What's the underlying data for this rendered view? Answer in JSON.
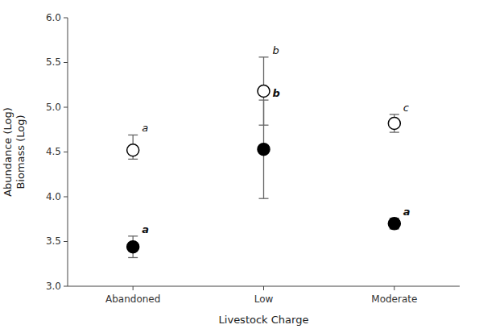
{
  "chart_data": {
    "type": "dot",
    "categories": [
      "Abandoned",
      "Low",
      "Moderate"
    ],
    "series": [
      {
        "color": "white",
        "marker": "circle",
        "values": [
          4.52,
          5.18,
          4.82
        ],
        "error_upper": [
          0.17,
          0.38,
          0.1
        ],
        "error_lower": [
          0.1,
          0.38,
          0.1
        ],
        "labels": [
          "a",
          "b",
          "c"
        ]
      },
      {
        "color": "black",
        "marker": "circle",
        "values": [
          3.44,
          4.53,
          3.7
        ],
        "error_upper": [
          0.12,
          0.55,
          0.06
        ],
        "error_lower": [
          0.12,
          0.55,
          0.06
        ],
        "labels": [
          "a",
          "b",
          "a"
        ]
      }
    ],
    "ylim": [
      3.0,
      6.0
    ],
    "yticks": [
      {
        "value": 3.0,
        "label": "3.0"
      },
      3.5,
      {
        "value": 4.0,
        "label": "4.0"
      },
      4.5,
      {
        "value": 5.0,
        "label": "5.0"
      },
      5.5,
      {
        "value": 6.0,
        "label": "6.0"
      }
    ],
    "x_label": "Livestock Charge",
    "y_label": "Abundance (Log)\nBiomass (Log)",
    "grid": false
  }
}
